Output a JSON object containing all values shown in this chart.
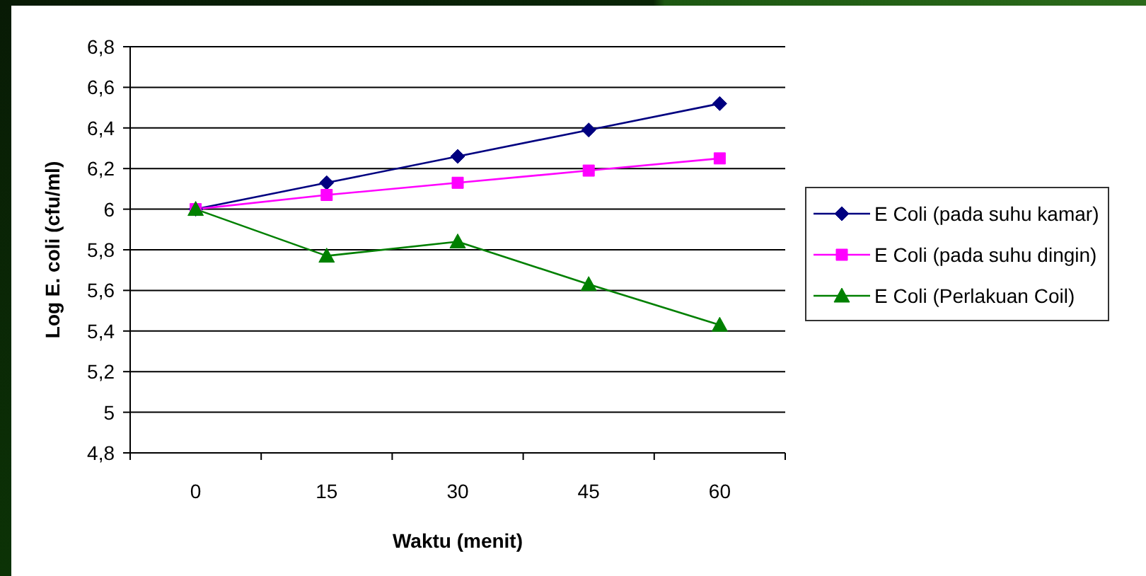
{
  "chart_data": {
    "type": "line",
    "xlabel": "Waktu (menit)",
    "ylabel": "Log E. coli (cfu/ml)",
    "categories": [
      "0",
      "15",
      "30",
      "45",
      "60"
    ],
    "series": [
      {
        "name": "E Coli (pada suhu kamar)",
        "color": "#000080",
        "marker": "diamond",
        "values": [
          6.0,
          6.13,
          6.26,
          6.39,
          6.52
        ]
      },
      {
        "name": "E Coli (pada suhu dingin)",
        "color": "#ff00ff",
        "marker": "square",
        "values": [
          6.0,
          6.07,
          6.13,
          6.19,
          6.25
        ]
      },
      {
        "name": "E Coli (Perlakuan Coil)",
        "color": "#008000",
        "marker": "triangle",
        "values": [
          6.0,
          5.77,
          5.84,
          5.63,
          5.43
        ]
      }
    ],
    "ylim": [
      4.8,
      6.8
    ],
    "yticks": [
      {
        "value": 4.8,
        "label": "4,8"
      },
      5,
      {
        "value": 5.2,
        "label": "5,2"
      },
      {
        "value": 5.4,
        "label": "5,4"
      },
      {
        "value": 5.6,
        "label": "5,6"
      },
      {
        "value": 5.8,
        "label": "5,8"
      },
      6,
      {
        "value": 6.2,
        "label": "6,2"
      },
      {
        "value": 6.4,
        "label": "6,4"
      },
      {
        "value": 6.6,
        "label": "6,6"
      },
      {
        "value": 6.8,
        "label": "6,8"
      }
    ],
    "grid": "y",
    "legend": "right"
  }
}
